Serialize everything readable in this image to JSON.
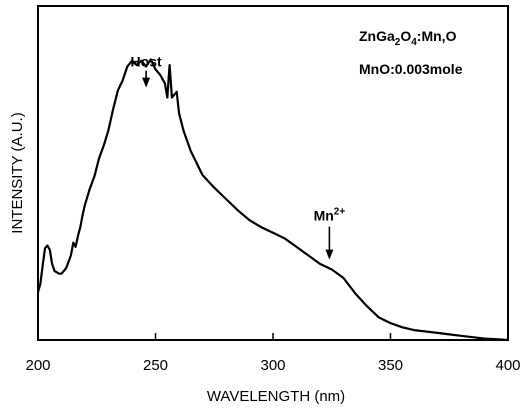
{
  "chart_data": {
    "type": "line",
    "xlabel": "WAVELENGTH (nm)",
    "ylabel": "INTENSITY (A.U.)",
    "xlim": [
      200,
      400
    ],
    "ylim": [
      0,
      100
    ],
    "x_ticks": [
      "200",
      "250",
      "300",
      "350",
      "400"
    ],
    "grid": false,
    "legend": "none",
    "note": {
      "line1_parts": [
        "ZnGa",
        "2",
        "O",
        "4",
        ":Mn,O"
      ],
      "line2": "MnO:0.003mole"
    },
    "annotations": [
      {
        "text": "Host",
        "x": 246,
        "y": 89.5
      },
      {
        "text": "Mn",
        "superscript": "2+",
        "x": 324,
        "y": 28.5
      }
    ],
    "series": [
      {
        "x": [
          200,
          201,
          202,
          203,
          204,
          205,
          206,
          207,
          208,
          209,
          210,
          212,
          214,
          215,
          216,
          217,
          218,
          219,
          220,
          222,
          224,
          226,
          228,
          230,
          232,
          234,
          236,
          238,
          240,
          242,
          244,
          246,
          248,
          250,
          252,
          254,
          255,
          256,
          257,
          258,
          259,
          260,
          262,
          265,
          270,
          275,
          280,
          285,
          290,
          295,
          300,
          305,
          310,
          315,
          320,
          325,
          330,
          335,
          340,
          345,
          350,
          355,
          360,
          365,
          370,
          375,
          380,
          385,
          390,
          395,
          400
        ],
        "y": [
          17.0,
          20.0,
          26.5,
          32.5,
          33.5,
          32.0,
          27.0,
          24.5,
          24.0,
          23.5,
          23.5,
          25.5,
          30.0,
          34.5,
          33.0,
          37.0,
          40.0,
          44.5,
          48.0,
          53.5,
          58.0,
          64.5,
          69.0,
          74.5,
          82.0,
          88.5,
          92.0,
          97.0,
          99.0,
          97.5,
          99.0,
          97.0,
          99.5,
          96.0,
          94.0,
          91.0,
          86.0,
          97.5,
          86.0,
          87.0,
          88.0,
          80.5,
          74.0,
          67.0,
          58.5,
          54.0,
          50.0,
          46.0,
          42.5,
          40.0,
          38.0,
          36.0,
          33.0,
          30.0,
          27.0,
          25.0,
          22.0,
          16.5,
          12.0,
          8.0,
          6.0,
          4.5,
          3.5,
          3.0,
          2.5,
          2.0,
          1.5,
          1.0,
          0.5,
          0.3,
          0.0
        ]
      }
    ]
  }
}
